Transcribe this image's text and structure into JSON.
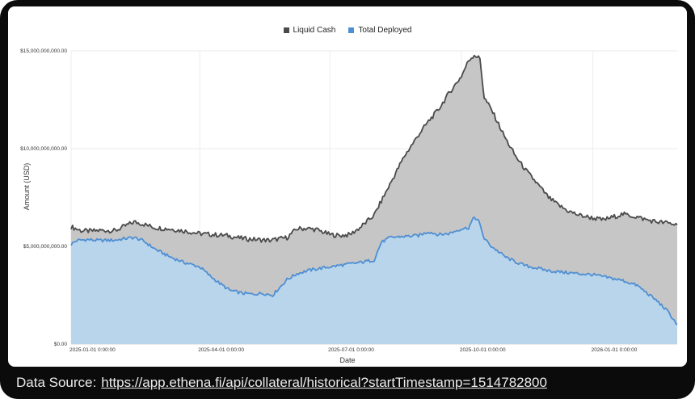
{
  "footer": {
    "prefix": "Data Source:",
    "link_text": "https://app.ethena.fi/api/collateral/historical?startTimestamp=1514782800"
  },
  "colors": {
    "frame_background": "#0b0b0b",
    "card_background": "#ffffff",
    "grid": "#e9e9e9",
    "footer_text": "#ececec"
  },
  "chart_data": {
    "type": "area",
    "title": "",
    "xlabel": "Date",
    "ylabel": "Amount (USD)",
    "legend_position": "top",
    "grid": true,
    "values_unit": "USD billions",
    "x_range": [
      "2025-01-01",
      "2026-03-01"
    ],
    "ylim": [
      0,
      15
    ],
    "x_ticks": [
      {
        "date": "2025-01-01",
        "label": "2025-01-01 0:00:00"
      },
      {
        "date": "2025-04-01",
        "label": "2025-04-01 0:00:00"
      },
      {
        "date": "2025-07-01",
        "label": "2025-07-01 0:00:00"
      },
      {
        "date": "2025-10-01",
        "label": "2025-10-01 0:00:00"
      },
      {
        "date": "2026-01-01",
        "label": "2026-01-01 0:00:00"
      }
    ],
    "y_ticks": [
      {
        "value": 0,
        "label": "$0.00"
      },
      {
        "value": 5,
        "label": "$5,000,000,000.00"
      },
      {
        "value": 10,
        "label": "$10,000,000,000.00"
      },
      {
        "value": 15,
        "label": "$15,000,000,000.00"
      }
    ],
    "series": [
      {
        "name": "Liquid Cash",
        "line_color": "#4a4a4a",
        "fill_color": "#c6c6c6",
        "points": [
          [
            "2025-01-01",
            6.0
          ],
          [
            "2025-01-08",
            5.8
          ],
          [
            "2025-01-15",
            5.78
          ],
          [
            "2025-01-22",
            5.82
          ],
          [
            "2025-02-01",
            5.8
          ],
          [
            "2025-02-08",
            6.05
          ],
          [
            "2025-02-14",
            6.25
          ],
          [
            "2025-02-20",
            6.15
          ],
          [
            "2025-03-01",
            5.95
          ],
          [
            "2025-03-10",
            5.9
          ],
          [
            "2025-03-20",
            5.8
          ],
          [
            "2025-04-01",
            5.65
          ],
          [
            "2025-04-10",
            5.6
          ],
          [
            "2025-04-20",
            5.55
          ],
          [
            "2025-05-01",
            5.4
          ],
          [
            "2025-05-10",
            5.35
          ],
          [
            "2025-05-20",
            5.3
          ],
          [
            "2025-06-01",
            5.45
          ],
          [
            "2025-06-08",
            5.9
          ],
          [
            "2025-06-15",
            5.92
          ],
          [
            "2025-06-22",
            5.85
          ],
          [
            "2025-07-01",
            5.6
          ],
          [
            "2025-07-08",
            5.55
          ],
          [
            "2025-07-15",
            5.6
          ],
          [
            "2025-07-22",
            5.95
          ],
          [
            "2025-08-01",
            6.6
          ],
          [
            "2025-08-08",
            7.6
          ],
          [
            "2025-08-15",
            8.6
          ],
          [
            "2025-08-22",
            9.6
          ],
          [
            "2025-09-01",
            10.7
          ],
          [
            "2025-09-08",
            11.4
          ],
          [
            "2025-09-15",
            12.0
          ],
          [
            "2025-09-22",
            12.8
          ],
          [
            "2025-10-01",
            13.7
          ],
          [
            "2025-10-06",
            14.5
          ],
          [
            "2025-10-10",
            14.8
          ],
          [
            "2025-10-14",
            14.6
          ],
          [
            "2025-10-17",
            12.6
          ],
          [
            "2025-10-22",
            12.0
          ],
          [
            "2025-11-01",
            10.5
          ],
          [
            "2025-11-08",
            9.6
          ],
          [
            "2025-11-15",
            8.9
          ],
          [
            "2025-11-22",
            8.3
          ],
          [
            "2025-12-01",
            7.5
          ],
          [
            "2025-12-08",
            7.1
          ],
          [
            "2025-12-15",
            6.8
          ],
          [
            "2025-12-22",
            6.6
          ],
          [
            "2026-01-01",
            6.45
          ],
          [
            "2026-01-08",
            6.35
          ],
          [
            "2026-01-15",
            6.5
          ],
          [
            "2026-01-22",
            6.65
          ],
          [
            "2026-02-01",
            6.5
          ],
          [
            "2026-02-08",
            6.35
          ],
          [
            "2026-02-15",
            6.25
          ],
          [
            "2026-02-22",
            6.2
          ],
          [
            "2026-03-01",
            6.1
          ]
        ]
      },
      {
        "name": "Total Deployed",
        "line_color": "#4e8fd3",
        "fill_color": "#b9d5ec",
        "points": [
          [
            "2025-01-01",
            5.1
          ],
          [
            "2025-01-05",
            5.3
          ],
          [
            "2025-01-12",
            5.35
          ],
          [
            "2025-01-20",
            5.3
          ],
          [
            "2025-02-01",
            5.32
          ],
          [
            "2025-02-08",
            5.4
          ],
          [
            "2025-02-14",
            5.45
          ],
          [
            "2025-02-20",
            5.3
          ],
          [
            "2025-03-01",
            4.85
          ],
          [
            "2025-03-10",
            4.5
          ],
          [
            "2025-03-20",
            4.2
          ],
          [
            "2025-04-01",
            3.95
          ],
          [
            "2025-04-08",
            3.5
          ],
          [
            "2025-04-15",
            3.1
          ],
          [
            "2025-04-22",
            2.75
          ],
          [
            "2025-05-01",
            2.6
          ],
          [
            "2025-05-08",
            2.55
          ],
          [
            "2025-05-15",
            2.6
          ],
          [
            "2025-05-22",
            2.5
          ],
          [
            "2025-06-01",
            3.3
          ],
          [
            "2025-06-08",
            3.6
          ],
          [
            "2025-06-15",
            3.75
          ],
          [
            "2025-06-22",
            3.85
          ],
          [
            "2025-07-01",
            3.95
          ],
          [
            "2025-07-10",
            4.05
          ],
          [
            "2025-07-20",
            4.15
          ],
          [
            "2025-08-01",
            4.3
          ],
          [
            "2025-08-06",
            5.2
          ],
          [
            "2025-08-12",
            5.45
          ],
          [
            "2025-08-20",
            5.5
          ],
          [
            "2025-09-01",
            5.55
          ],
          [
            "2025-09-08",
            5.75
          ],
          [
            "2025-09-15",
            5.6
          ],
          [
            "2025-09-22",
            5.65
          ],
          [
            "2025-10-01",
            5.9
          ],
          [
            "2025-10-06",
            5.95
          ],
          [
            "2025-10-10",
            6.5
          ],
          [
            "2025-10-13",
            6.3
          ],
          [
            "2025-10-17",
            5.4
          ],
          [
            "2025-10-22",
            5.0
          ],
          [
            "2025-11-01",
            4.45
          ],
          [
            "2025-11-08",
            4.2
          ],
          [
            "2025-11-15",
            4.0
          ],
          [
            "2025-11-22",
            3.9
          ],
          [
            "2025-12-01",
            3.75
          ],
          [
            "2025-12-08",
            3.7
          ],
          [
            "2025-12-15",
            3.65
          ],
          [
            "2025-12-22",
            3.6
          ],
          [
            "2026-01-01",
            3.55
          ],
          [
            "2026-01-08",
            3.45
          ],
          [
            "2026-01-15",
            3.35
          ],
          [
            "2026-01-22",
            3.25
          ],
          [
            "2026-02-01",
            3.0
          ],
          [
            "2026-02-08",
            2.6
          ],
          [
            "2026-02-15",
            2.2
          ],
          [
            "2026-02-22",
            1.7
          ],
          [
            "2026-03-01",
            1.0
          ]
        ]
      }
    ]
  }
}
